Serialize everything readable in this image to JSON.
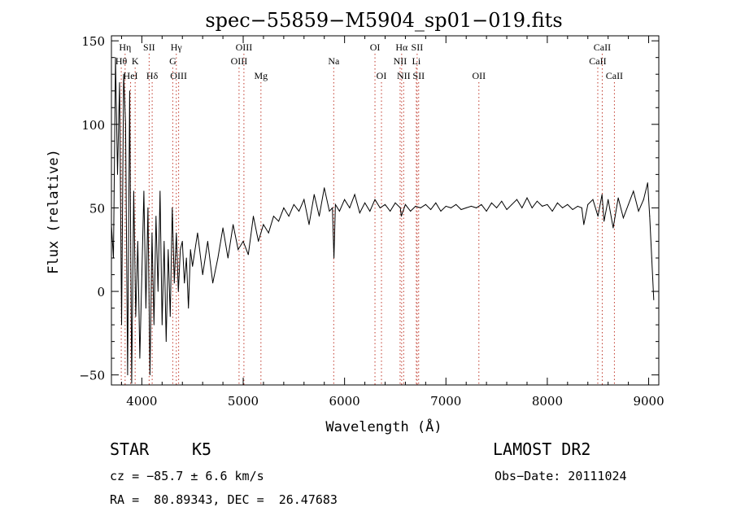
{
  "chart_data": {
    "type": "line",
    "title": "spec−55859−M5904_sp01−019.fits",
    "xlabel": "Wavelength (Å)",
    "ylabel": "Flux (relative)",
    "xlim": [
      3700,
      9100
    ],
    "ylim": [
      -56,
      153
    ],
    "xticks": [
      4000,
      5000,
      6000,
      7000,
      8000,
      9000
    ],
    "yticks": [
      -50,
      0,
      50,
      100,
      150
    ],
    "ytick_labels": [
      "−50",
      "0",
      "50",
      "100",
      "150"
    ],
    "series": [
      {
        "name": "flux",
        "x": [
          3700,
          3720,
          3740,
          3760,
          3780,
          3800,
          3820,
          3840,
          3860,
          3880,
          3900,
          3920,
          3940,
          3960,
          3980,
          4000,
          4020,
          4040,
          4060,
          4080,
          4100,
          4120,
          4140,
          4160,
          4180,
          4200,
          4220,
          4240,
          4260,
          4280,
          4300,
          4320,
          4340,
          4360,
          4380,
          4400,
          4420,
          4440,
          4460,
          4480,
          4500,
          4550,
          4600,
          4650,
          4700,
          4750,
          4800,
          4850,
          4900,
          4950,
          5000,
          5050,
          5100,
          5150,
          5200,
          5250,
          5300,
          5350,
          5400,
          5450,
          5500,
          5550,
          5600,
          5650,
          5700,
          5750,
          5800,
          5850,
          5880,
          5895,
          5910,
          5950,
          6000,
          6050,
          6100,
          6150,
          6200,
          6250,
          6300,
          6350,
          6400,
          6450,
          6500,
          6550,
          6560,
          6600,
          6650,
          6700,
          6750,
          6800,
          6850,
          6900,
          6950,
          7000,
          7050,
          7100,
          7150,
          7200,
          7250,
          7300,
          7350,
          7400,
          7450,
          7500,
          7550,
          7600,
          7650,
          7700,
          7750,
          7800,
          7850,
          7900,
          7950,
          8000,
          8050,
          8100,
          8150,
          8200,
          8250,
          8300,
          8340,
          8360,
          8400,
          8450,
          8500,
          8540,
          8560,
          8600,
          8650,
          8700,
          8750,
          8800,
          8850,
          8900,
          8950,
          8990,
          9010,
          9030,
          9050
        ],
        "values": [
          40,
          20,
          140,
          70,
          125,
          -20,
          130,
          100,
          -50,
          120,
          -55,
          60,
          -15,
          30,
          -40,
          10,
          60,
          -10,
          50,
          -50,
          35,
          -20,
          45,
          0,
          60,
          -20,
          30,
          -30,
          25,
          -15,
          50,
          5,
          35,
          0,
          25,
          30,
          5,
          20,
          -10,
          25,
          15,
          35,
          10,
          30,
          5,
          20,
          38,
          20,
          40,
          25,
          30,
          22,
          45,
          30,
          40,
          35,
          45,
          42,
          50,
          45,
          52,
          48,
          55,
          40,
          58,
          45,
          62,
          48,
          50,
          20,
          52,
          48,
          55,
          50,
          58,
          47,
          53,
          48,
          55,
          50,
          52,
          48,
          53,
          50,
          45,
          52,
          48,
          51,
          50,
          52,
          49,
          53,
          48,
          51,
          50,
          52,
          49,
          50,
          51,
          50,
          52,
          48,
          53,
          50,
          54,
          49,
          52,
          55,
          50,
          56,
          50,
          54,
          51,
          52,
          48,
          53,
          50,
          52,
          49,
          51,
          50,
          40,
          52,
          55,
          45,
          58,
          42,
          55,
          38,
          56,
          44,
          52,
          60,
          48,
          55,
          65,
          45,
          20,
          -5
        ]
      }
    ],
    "line_markers": [
      {
        "label": "Hη",
        "wl": 3835,
        "row": 1
      },
      {
        "label": "Hθ",
        "wl": 3797,
        "row": 2
      },
      {
        "label": "K",
        "wl": 3934,
        "row": 2
      },
      {
        "label": "HeI",
        "wl": 3889,
        "row": 3
      },
      {
        "label": "SII",
        "wl": 4072,
        "row": 1
      },
      {
        "label": "Hδ",
        "wl": 4102,
        "row": 3
      },
      {
        "label": "Hγ",
        "wl": 4340,
        "row": 1
      },
      {
        "label": "G",
        "wl": 4305,
        "row": 2
      },
      {
        "label": "OIII",
        "wl": 4363,
        "row": 3
      },
      {
        "label": "OIII",
        "wl": 5007,
        "row": 1
      },
      {
        "label": "OIII",
        "wl": 4959,
        "row": 2
      },
      {
        "label": "Mg",
        "wl": 5175,
        "row": 3
      },
      {
        "label": "Na",
        "wl": 5893,
        "row": 2
      },
      {
        "label": "OI",
        "wl": 6300,
        "row": 1
      },
      {
        "label": "OI",
        "wl": 6364,
        "row": 3
      },
      {
        "label": "Hα",
        "wl": 6563,
        "row": 1
      },
      {
        "label": "SII",
        "wl": 6716,
        "row": 1
      },
      {
        "label": "NII",
        "wl": 6548,
        "row": 2
      },
      {
        "label": "Li",
        "wl": 6708,
        "row": 2
      },
      {
        "label": "NII",
        "wl": 6583,
        "row": 3
      },
      {
        "label": "SII",
        "wl": 6731,
        "row": 3
      },
      {
        "label": "OII",
        "wl": 7325,
        "row": 3
      },
      {
        "label": "CaII",
        "wl": 8542,
        "row": 1
      },
      {
        "label": "CaII",
        "wl": 8498,
        "row": 2
      },
      {
        "label": "CaII",
        "wl": 8662,
        "row": 3
      }
    ]
  },
  "info": {
    "object_class": "STAR",
    "subclass": "K5",
    "survey": "LAMOST DR2",
    "velocity": "cz = −85.7 ± 6.6 km/s",
    "obs_date": "Obs−Date: 20111024",
    "coords": "RA =  80.89343, DEC =  26.47683"
  }
}
